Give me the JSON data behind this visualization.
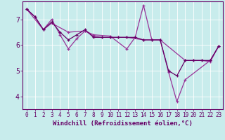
{
  "xlabel": "Windchill (Refroidissement éolien,°C)",
  "bg_color": "#c8ecec",
  "line_color": "#993399",
  "line_color2": "#660066",
  "x_min": -0.5,
  "x_max": 23.5,
  "y_min": 3.5,
  "y_max": 7.7,
  "line1_x": [
    0,
    1,
    2,
    3,
    4,
    5,
    6,
    7,
    8,
    9,
    10,
    11,
    12,
    13,
    14,
    15,
    16,
    17,
    18,
    19,
    20,
    21,
    22,
    23
  ],
  "line1_y": [
    7.4,
    7.1,
    6.6,
    6.9,
    6.5,
    6.2,
    6.4,
    6.6,
    6.3,
    6.3,
    6.3,
    6.3,
    6.3,
    6.3,
    6.2,
    6.2,
    6.2,
    5.0,
    4.8,
    5.4,
    5.4,
    5.4,
    5.4,
    5.95
  ],
  "line2_x": [
    0,
    2,
    3,
    4,
    5,
    6,
    7,
    8,
    10,
    12,
    13,
    14,
    15,
    16,
    17,
    18,
    19,
    22,
    23
  ],
  "line2_y": [
    7.4,
    6.6,
    7.0,
    6.4,
    5.85,
    6.25,
    6.55,
    6.4,
    6.35,
    5.85,
    6.3,
    7.55,
    6.2,
    6.2,
    4.95,
    3.8,
    4.65,
    5.4,
    5.95
  ],
  "line3_x": [
    0,
    1,
    2,
    3,
    5,
    7,
    8,
    9,
    10,
    11,
    12,
    14,
    16,
    19,
    20,
    21,
    22,
    23
  ],
  "line3_y": [
    7.4,
    7.1,
    6.6,
    6.85,
    6.5,
    6.55,
    6.35,
    6.3,
    6.3,
    6.3,
    6.3,
    6.2,
    6.2,
    5.4,
    5.4,
    5.4,
    5.35,
    5.95
  ],
  "tick_fontsize": 5.5,
  "label_fontsize": 6.5,
  "yticks": [
    4,
    5,
    6,
    7
  ],
  "xticks": [
    0,
    1,
    2,
    3,
    4,
    5,
    6,
    7,
    8,
    9,
    10,
    11,
    12,
    13,
    14,
    15,
    16,
    17,
    18,
    19,
    20,
    21,
    22,
    23
  ]
}
